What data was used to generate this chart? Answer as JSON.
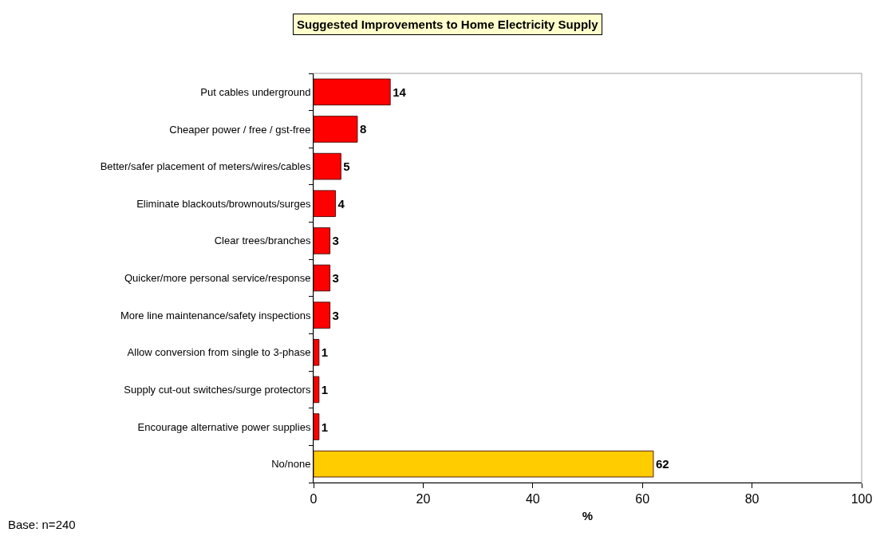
{
  "chart_data": {
    "type": "bar",
    "orientation": "horizontal",
    "title": "Suggested Improvements to Home Electricity Supply",
    "xlabel": "%",
    "categories": [
      "Put cables underground",
      "Cheaper power / free / gst-free",
      "Better/safer placement of meters/wires/cables",
      "Eliminate blackouts/brownouts/surges",
      "Clear trees/branches",
      "Quicker/more personal service/response",
      "More line maintenance/safety inspections",
      "Allow conversion from single to 3-phase",
      "Supply cut-out switches/surge protectors",
      "Encourage alternative power supplies",
      "No/none"
    ],
    "values": [
      14,
      8,
      5,
      4,
      3,
      3,
      3,
      1,
      1,
      1,
      62
    ],
    "colors": [
      "#ff0000",
      "#ff0000",
      "#ff0000",
      "#ff0000",
      "#ff0000",
      "#ff0000",
      "#ff0000",
      "#ff0000",
      "#ff0000",
      "#ff0000",
      "#ffcc00"
    ],
    "xlim": [
      0,
      100
    ],
    "xticks": [
      0,
      20,
      40,
      60,
      80,
      100
    ],
    "data_labels": true,
    "grid": false,
    "annotations": [
      "Base: n=240"
    ]
  }
}
